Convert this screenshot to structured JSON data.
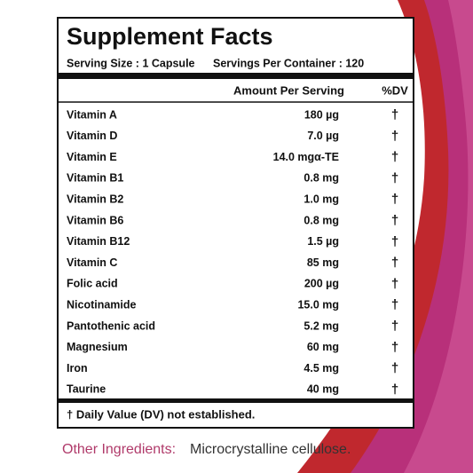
{
  "label": {
    "title": "Supplement Facts",
    "serving_size": "Serving Size : 1 Capsule",
    "servings_per_container": "Servings Per Container : 120",
    "columns": {
      "amount": "Amount Per Serving",
      "dv": "%DV"
    },
    "rows": [
      {
        "name": "Vitamin A",
        "amount": "180 µg",
        "dv": "†"
      },
      {
        "name": "Vitamin D",
        "amount": "7.0 µg",
        "dv": "†"
      },
      {
        "name": "Vitamin E",
        "amount": "14.0 mgα-TE",
        "dv": "†"
      },
      {
        "name": "Vitamin B1",
        "amount": "0.8 mg",
        "dv": "†"
      },
      {
        "name": "Vitamin B2",
        "amount": "1.0 mg",
        "dv": "†"
      },
      {
        "name": "Vitamin B6",
        "amount": "0.8 mg",
        "dv": "†"
      },
      {
        "name": "Vitamin B12",
        "amount": "1.5 µg",
        "dv": "†"
      },
      {
        "name": "Vitamin C",
        "amount": "85 mg",
        "dv": "†"
      },
      {
        "name": "Folic acid",
        "amount": "200 µg",
        "dv": "†"
      },
      {
        "name": "Nicotinamide",
        "amount": "15.0 mg",
        "dv": "†"
      },
      {
        "name": "Pantothenic acid",
        "amount": "5.2 mg",
        "dv": "†"
      },
      {
        "name": "Magnesium",
        "amount": "60 mg",
        "dv": "†"
      },
      {
        "name": "Iron",
        "amount": "4.5 mg",
        "dv": "†"
      },
      {
        "name": "Taurine",
        "amount": "40 mg",
        "dv": "†"
      }
    ],
    "footnote": "† Daily Value (DV) not established."
  },
  "other_ingredients": {
    "label": "Other Ingredients:",
    "text": "Microcrystalline cellulose."
  }
}
